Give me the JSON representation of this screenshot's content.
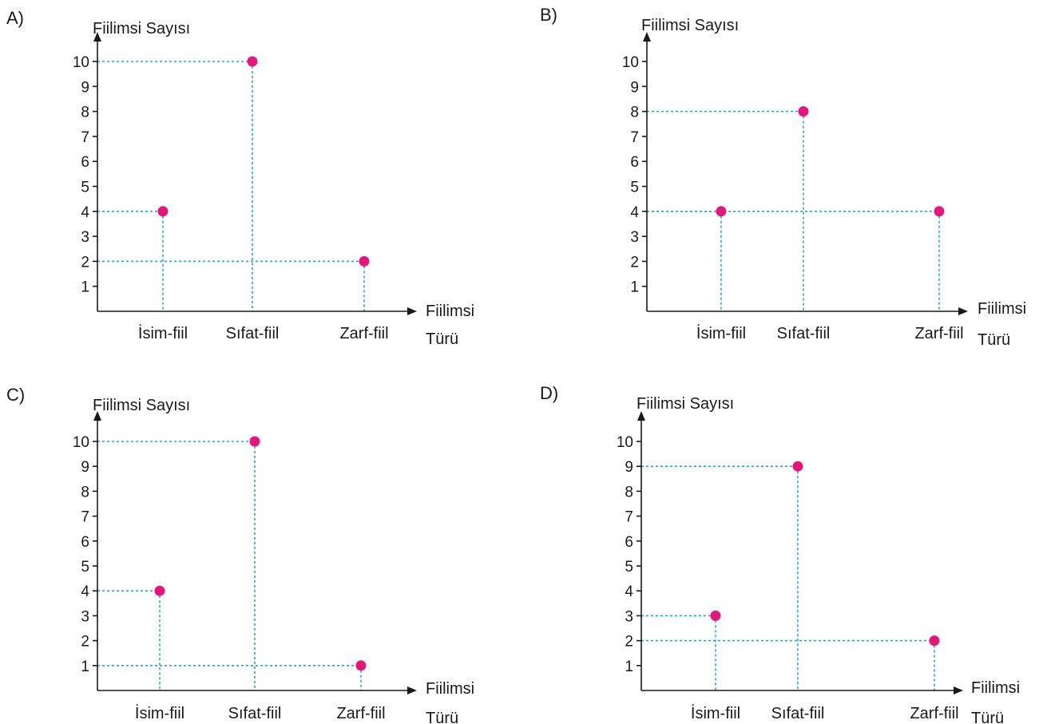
{
  "chart_data": [
    {
      "type": "scatter",
      "option_label": "A)",
      "ylabel": "Fiilimsi Sayısı",
      "xlabel_line1": "Fiilimsi",
      "xlabel_line2": "Türü",
      "categories": [
        "İsim-fiil",
        "Sıfat-fiil",
        "Zarf-fiil"
      ],
      "values": [
        4,
        10,
        2
      ],
      "y_ticks": [
        1,
        2,
        3,
        4,
        5,
        6,
        7,
        8,
        9,
        10
      ],
      "ylim": [
        0,
        10
      ],
      "grid": false
    },
    {
      "type": "scatter",
      "option_label": "B)",
      "ylabel": "Fiilimsi Sayısı",
      "xlabel_line1": "Fiilimsi",
      "xlabel_line2": "Türü",
      "categories": [
        "İsim-fiil",
        "Sıfat-fiil",
        "Zarf-fiil"
      ],
      "values": [
        4,
        8,
        4
      ],
      "y_ticks": [
        1,
        2,
        3,
        4,
        5,
        6,
        7,
        8,
        9,
        10
      ],
      "ylim": [
        0,
        10
      ],
      "grid": false
    },
    {
      "type": "scatter",
      "option_label": "C)",
      "ylabel": "Fiilimsi Sayısı",
      "xlabel_line1": "Fiilimsi",
      "xlabel_line2": "Türü",
      "categories": [
        "İsim-fiil",
        "Sıfat-fiil",
        "Zarf-fiil"
      ],
      "values": [
        4,
        10,
        1
      ],
      "y_ticks": [
        1,
        2,
        3,
        4,
        5,
        6,
        7,
        8,
        9,
        10
      ],
      "ylim": [
        0,
        10
      ],
      "grid": false
    },
    {
      "type": "scatter",
      "option_label": "D)",
      "ylabel": "Fiilimsi Sayısı",
      "xlabel_line1": "Fiilimsi",
      "xlabel_line2": "Türü",
      "categories": [
        "İsim-fiil",
        "Sıfat-fiil",
        "Zarf-fiil"
      ],
      "values": [
        3,
        9,
        2
      ],
      "y_ticks": [
        1,
        2,
        3,
        4,
        5,
        6,
        7,
        8,
        9,
        10
      ],
      "ylim": [
        0,
        10
      ],
      "grid": false
    }
  ],
  "colors": {
    "point": "#e6157e",
    "guide": "#1ea7dc",
    "axis": "#1a1a1a"
  }
}
